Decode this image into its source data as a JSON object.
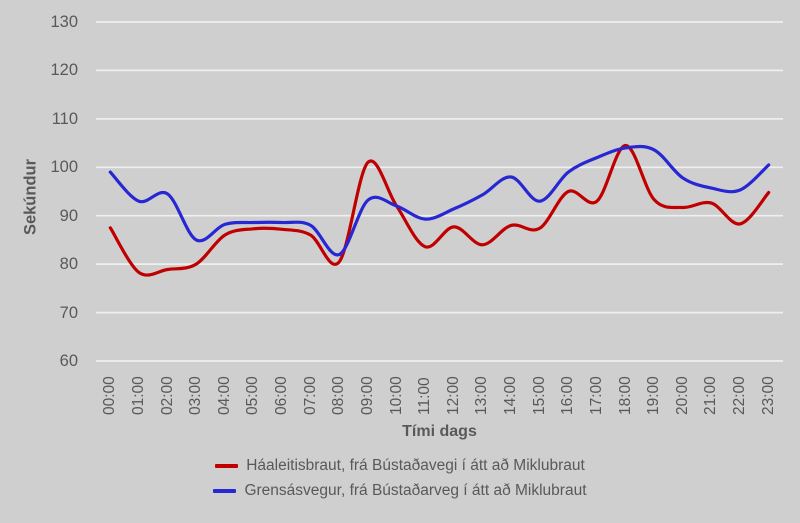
{
  "chart_data": {
    "type": "line",
    "title": "",
    "xlabel": "Tími dags",
    "ylabel": "Sekúndur",
    "x": [
      "00:00",
      "01:00",
      "02:00",
      "03:00",
      "04:00",
      "05:00",
      "06:00",
      "07:00",
      "08:00",
      "09:00",
      "10:00",
      "11:00",
      "12:00",
      "13:00",
      "14:00",
      "15:00",
      "16:00",
      "17:00",
      "18:00",
      "19:00",
      "20:00",
      "21:00",
      "22:00",
      "23:00"
    ],
    "series": [
      {
        "name": "Háaleitisbraut, frá Bústaðavegi í átt að Miklubraut",
        "color": "#c00000",
        "values": [
          87.5,
          78.3,
          78.9,
          80,
          86,
          87.3,
          87.2,
          86,
          80.5,
          101,
          92,
          83.6,
          87.7,
          84,
          88,
          87.4,
          95,
          93,
          104.5,
          93.3,
          91.7,
          92.6,
          88.3,
          94.8
        ]
      },
      {
        "name": "Grensásvegur, frá Bústaðarveg í átt að Miklubraut",
        "color": "#2727d3",
        "values": [
          99,
          93,
          94.5,
          85,
          88.2,
          88.6,
          88.6,
          88,
          82,
          93.2,
          92,
          89.3,
          91.4,
          94.3,
          98,
          93,
          99,
          102,
          104,
          103.6,
          97.8,
          95.7,
          95.3,
          100.5
        ]
      }
    ],
    "ylim": [
      60,
      130
    ],
    "ytick_step": 10,
    "yticks": [
      "60",
      "70",
      "80",
      "90",
      "100",
      "110",
      "120",
      "130"
    ],
    "grid": true,
    "legend_position": "bottom",
    "line_smoothing": true
  },
  "colors": {
    "background": "#d0cfcf",
    "gridline": "#efefef",
    "text": "#595959",
    "series_red": "#c00000",
    "series_blue": "#2727d3"
  }
}
